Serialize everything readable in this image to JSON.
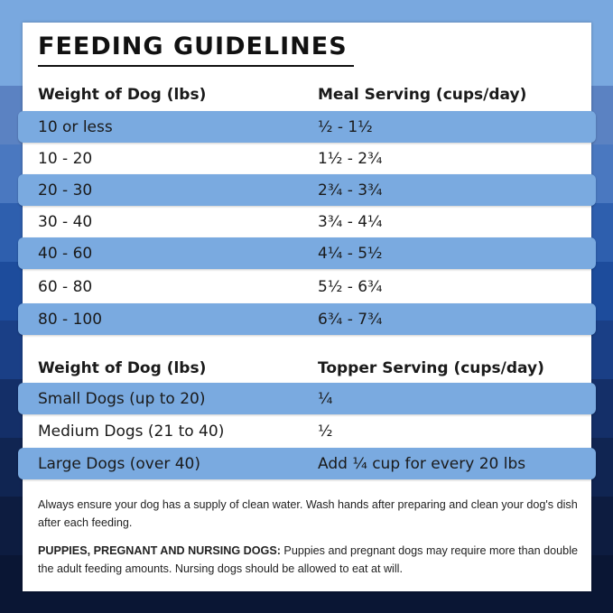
{
  "title": "FEEDING GUIDELINES",
  "meal": {
    "headers": [
      "Weight of Dog (lbs)",
      "Meal Serving (cups/day)"
    ],
    "rows": [
      [
        "10 or less",
        "½ - 1½"
      ],
      [
        "10 - 20",
        "1½ - 2¾"
      ],
      [
        "20 - 30",
        "2¾ - 3¾"
      ],
      [
        "30 - 40",
        "3¾ - 4¼"
      ],
      [
        "40 - 60",
        "4¼ - 5½"
      ],
      [
        "60 - 80",
        "5½ - 6¾"
      ],
      [
        "80 - 100",
        "6¾ - 7¾"
      ]
    ]
  },
  "topper": {
    "headers": [
      "Weight of Dog (lbs)",
      "Topper Serving (cups/day)"
    ],
    "rows": [
      [
        "Small Dogs (up to 20)",
        "¼"
      ],
      [
        "Medium Dogs (21 to 40)",
        "½"
      ],
      [
        "Large Dogs (over 40)",
        "Add ¼ cup for every 20 lbs"
      ]
    ]
  },
  "notes": {
    "water": "Always ensure your dog has a supply of clean water. Wash hands after preparing and clean your dog's dish after each feeding.",
    "puppies_label": "PUPPIES, PREGNANT AND NURSING DOGS:",
    "puppies_text": " Puppies and pregnant dogs may require more than double the adult feeding amounts. Nursing dogs should be allowed to eat at will."
  },
  "colors": {
    "highlight": "#7aaae0",
    "text": "#1a1a1a"
  }
}
